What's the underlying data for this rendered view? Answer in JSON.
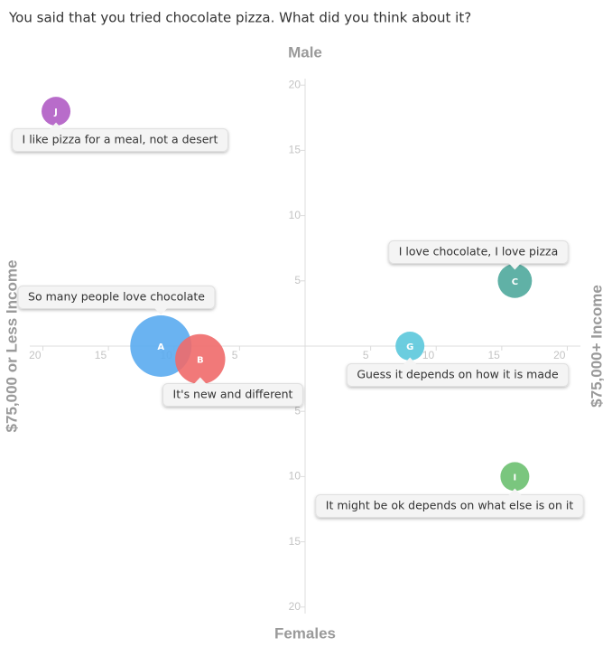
{
  "title": "You said that you tried chocolate pizza. What did you think about it?",
  "chart_data": {
    "type": "bubble",
    "x_axis_left_label": "$75,000 or Less Income",
    "x_axis_right_label": "$75,000+ Income",
    "y_axis_top_label": "Male",
    "y_axis_bottom_label": "Females",
    "xlim": [
      -21,
      21
    ],
    "ylim": [
      -20.5,
      20.5
    ],
    "xticks": [
      {
        "value": -20,
        "label": "20"
      },
      {
        "value": -15,
        "label": "15"
      },
      {
        "value": -10,
        "label": "10"
      },
      {
        "value": -5,
        "label": "5"
      },
      5,
      10,
      15,
      20
    ],
    "yticks": [
      20,
      15,
      10,
      5,
      {
        "value": -5,
        "label": "5"
      },
      {
        "value": -10,
        "label": "10"
      },
      {
        "value": -15,
        "label": "15"
      },
      {
        "value": -20,
        "label": "20"
      }
    ],
    "points": [
      {
        "label": "J",
        "text": "I like pizza for a meal, not a desert",
        "x": -19,
        "y": 18,
        "size": 1,
        "color": "#b05cc4"
      },
      {
        "label": "A",
        "text": "So many people love chocolate",
        "x": -11,
        "y": 0,
        "size": 4.5,
        "color": "#5aabf0"
      },
      {
        "label": "B",
        "text": "It's new and different",
        "x": -8,
        "y": -1,
        "size": 3,
        "color": "#f06a6a"
      },
      {
        "label": "G",
        "text": "Guess it depends on how it is made",
        "x": 8,
        "y": 0,
        "size": 1,
        "color": "#5bc8dc"
      },
      {
        "label": "C",
        "text": "I love chocolate, I love pizza",
        "x": 16,
        "y": 5,
        "size": 1.4,
        "color": "#4fa89c"
      },
      {
        "label": "I",
        "text": "It might be ok depends on what else is on it",
        "x": 16,
        "y": -10,
        "size": 1,
        "color": "#6cc070"
      }
    ]
  }
}
